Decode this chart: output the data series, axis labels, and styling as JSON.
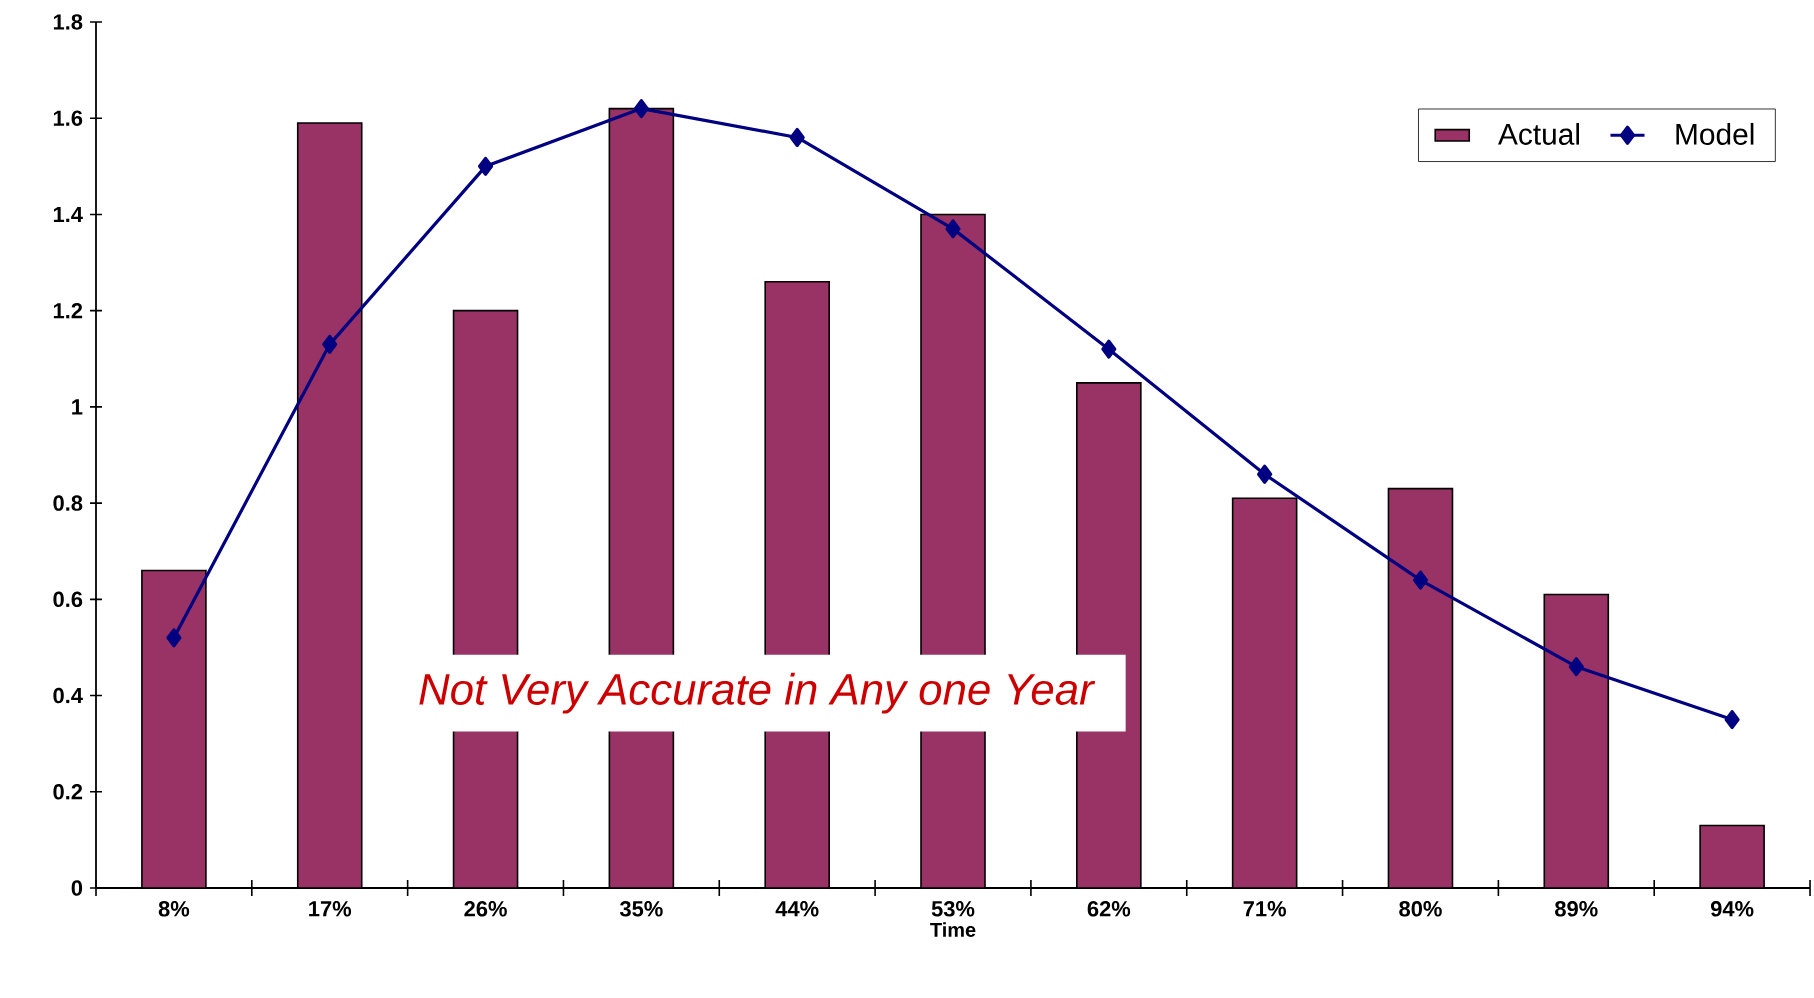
{
  "chart_data": {
    "type": "bar",
    "xlabel": "Time",
    "categories": [
      "8%",
      "17%",
      "26%",
      "35%",
      "44%",
      "53%",
      "62%",
      "71%",
      "80%",
      "89%",
      "94%"
    ],
    "series": [
      {
        "name": "Actual",
        "color": "#993366",
        "values": [
          0.66,
          1.59,
          1.2,
          1.62,
          1.26,
          1.4,
          1.05,
          0.81,
          0.83,
          0.61,
          0.13
        ]
      },
      {
        "name": "Model",
        "type": "line",
        "color": "#000080",
        "marker": "diamond",
        "values": [
          0.52,
          1.13,
          1.5,
          1.62,
          1.56,
          1.37,
          1.12,
          0.86,
          0.64,
          0.46,
          0.35
        ]
      }
    ],
    "ylim": [
      0,
      1.8
    ],
    "yticks": [
      0,
      0.2,
      0.4,
      0.6,
      0.8,
      1,
      1.2,
      1.4,
      1.6,
      1.8
    ],
    "legend": "top right",
    "grid": false,
    "annotations": [
      "Not Very Accurate in Any one Year"
    ]
  }
}
